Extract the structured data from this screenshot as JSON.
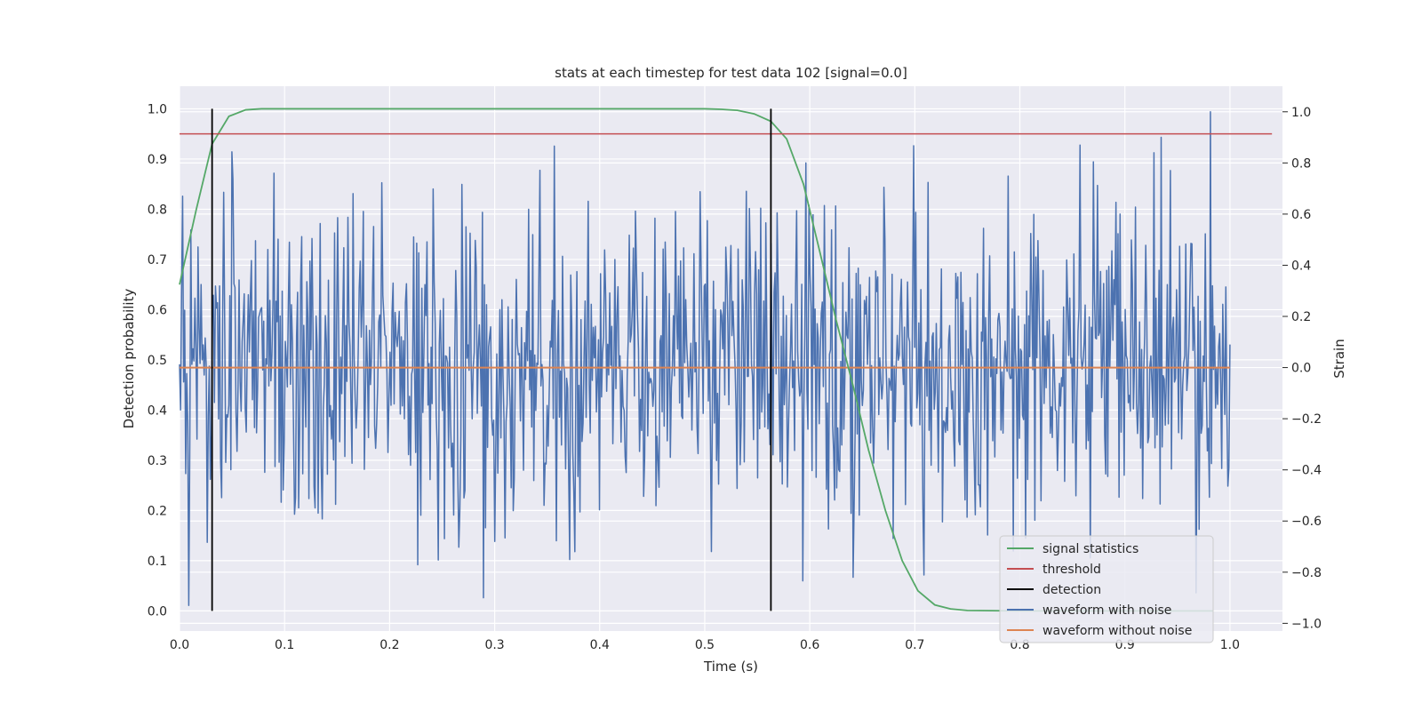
{
  "chart_data": {
    "type": "line",
    "title": "stats at each timestep for test data 102 [signal=0.0]",
    "xlabel": "Time (s)",
    "ylabel_left": "Detection probability",
    "ylabel_right": "Strain",
    "xlim": [
      0.0,
      1.05
    ],
    "ylim_left": [
      -0.04,
      1.045
    ],
    "ylim_right": [
      -1.03,
      1.1
    ],
    "x_ticks": [
      "0.0",
      "0.1",
      "0.2",
      "0.3",
      "0.4",
      "0.5",
      "0.6",
      "0.7",
      "0.8",
      "0.9",
      "1.0"
    ],
    "y_ticks_left": [
      "0.0",
      "0.1",
      "0.2",
      "0.3",
      "0.4",
      "0.5",
      "0.6",
      "0.7",
      "0.8",
      "0.9",
      "1.0"
    ],
    "y_ticks_right": [
      "−1.0",
      "−0.8",
      "−0.6",
      "−0.4",
      "−0.2",
      "0.0",
      "0.2",
      "0.4",
      "0.6",
      "0.8",
      "1.0"
    ],
    "grid": true,
    "legend_position": "lower-right",
    "colors": {
      "signal_statistics": "#55a868",
      "threshold": "#c44e52",
      "detection": "#000000",
      "waveform_with_noise": "#4c72b0",
      "waveform_without_noise": "#dd8452",
      "plot_background": "#eaeaf2",
      "grid": "#ffffff"
    },
    "series": [
      {
        "name": "signal statistics",
        "axis": "left",
        "x": [
          0.0,
          0.016,
          0.031,
          0.047,
          0.063,
          0.078,
          0.1,
          0.2,
          0.3,
          0.4,
          0.5,
          0.516,
          0.531,
          0.547,
          0.563,
          0.578,
          0.594,
          0.609,
          0.625,
          0.641,
          0.656,
          0.672,
          0.688,
          0.703,
          0.719,
          0.734,
          0.75,
          0.8,
          0.9,
          0.984
        ],
        "values": [
          0.65,
          0.8,
          0.93,
          0.985,
          0.998,
          1.0,
          1.0,
          1.0,
          1.0,
          1.0,
          1.0,
          0.999,
          0.997,
          0.99,
          0.975,
          0.94,
          0.85,
          0.72,
          0.58,
          0.45,
          0.32,
          0.2,
          0.1,
          0.04,
          0.012,
          0.004,
          0.001,
          0.0,
          0.0,
          0.0
        ]
      },
      {
        "name": "threshold",
        "axis": "left",
        "x": [
          0.0,
          1.04
        ],
        "values": [
          0.95,
          0.95
        ]
      },
      {
        "name": "detection",
        "axis": "left",
        "x_positions": [
          0.031,
          0.563
        ],
        "range": [
          0.0,
          1.0
        ]
      },
      {
        "name": "waveform with noise",
        "axis": "right",
        "x_range": [
          0.0,
          1.0
        ],
        "num_points": 1024,
        "amplitude_std": 0.3,
        "notable_peaks": [
          {
            "x": 0.981,
            "y": 1.0
          },
          {
            "x": 0.009,
            "y": -0.93
          },
          {
            "x": 0.641,
            "y": -0.82
          },
          {
            "x": 0.857,
            "y": 0.87
          },
          {
            "x": 0.596,
            "y": 0.8
          },
          {
            "x": 0.09,
            "y": 0.76
          },
          {
            "x": 0.003,
            "y": 0.67
          },
          {
            "x": 0.165,
            "y": 0.68
          },
          {
            "x": 0.376,
            "y": -0.72
          },
          {
            "x": 0.3,
            "y": -0.68
          }
        ]
      },
      {
        "name": "waveform without noise",
        "axis": "right",
        "x": [
          0.0,
          1.0
        ],
        "values": [
          0.0,
          0.0
        ]
      }
    ]
  },
  "legend": {
    "items": [
      {
        "label": "signal statistics",
        "color": "#55a868"
      },
      {
        "label": "threshold",
        "color": "#c44e52"
      },
      {
        "label": "detection",
        "color": "#000000"
      },
      {
        "label": "waveform with noise",
        "color": "#4c72b0"
      },
      {
        "label": "waveform without noise",
        "color": "#dd8452"
      }
    ]
  }
}
